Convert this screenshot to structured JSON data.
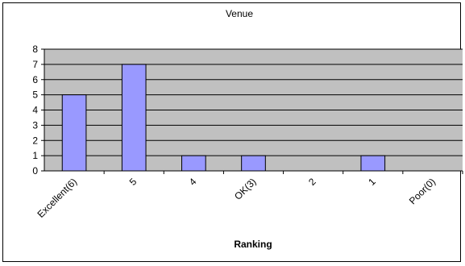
{
  "chart_data": {
    "type": "bar",
    "title": "Venue",
    "xlabel": "Ranking",
    "ylabel": "",
    "categories": [
      "Excellent(6)",
      "5",
      "4",
      "OK(3)",
      "2",
      "1",
      "Poor(0)"
    ],
    "values": [
      5,
      7,
      1,
      1,
      0,
      1,
      0
    ],
    "ylim": [
      0,
      8
    ],
    "yticks": [
      0,
      1,
      2,
      3,
      4,
      5,
      6,
      7,
      8
    ],
    "grid": true,
    "legend": "none",
    "colors": {
      "bar_fill": "#9999ff",
      "bar_stroke": "#000000",
      "plot_background": "#c0c0c0",
      "gridline": "#000000"
    }
  }
}
